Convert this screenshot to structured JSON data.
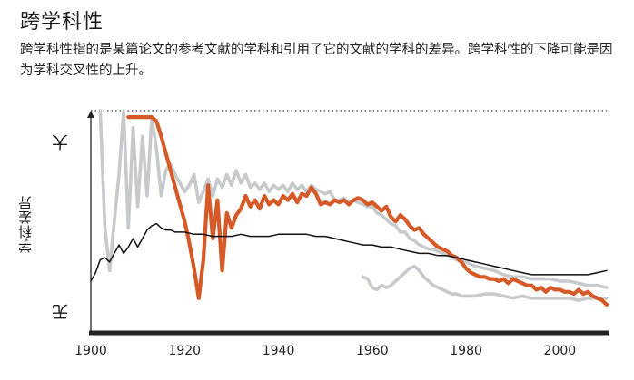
{
  "header": {
    "title": "跨学科性",
    "subtitle": "跨学科性指的是某篇论文的参考文献的学科和引用了它的文献的学科的差异。跨学科性的下降可能是因为学科交叉性的上升。"
  },
  "colors": {
    "highlight": "#d65a28",
    "gray": "#c6cacd",
    "average": "#111111",
    "axis": "#222222"
  },
  "chart_data": {
    "type": "line",
    "xlim": [
      1900,
      2010
    ],
    "ylim": [
      0,
      100
    ],
    "ylabel": "学科差异",
    "y_high_label": "大",
    "y_low_label": "无",
    "x_ticks": [
      1900,
      1920,
      1940,
      1960,
      1980,
      2000
    ],
    "series": [
      {
        "role": "gray",
        "points": [
          [
            1902,
            100
          ],
          [
            1903,
            45
          ],
          [
            1904,
            25
          ],
          [
            1905,
            48
          ],
          [
            1906,
            70
          ],
          [
            1907,
            100
          ],
          [
            1908,
            45
          ],
          [
            1909,
            92
          ],
          [
            1910,
            55
          ],
          [
            1911,
            88
          ],
          [
            1912,
            60
          ],
          [
            1913,
            97
          ],
          [
            1914,
            82
          ],
          [
            1915,
            60
          ],
          [
            1916,
            72
          ],
          [
            1917,
            75
          ],
          [
            1918,
            70
          ],
          [
            1919,
            66
          ],
          [
            1920,
            62
          ],
          [
            1921,
            65
          ],
          [
            1922,
            70
          ],
          [
            1923,
            57
          ],
          [
            1924,
            62
          ],
          [
            1925,
            68
          ],
          [
            1926,
            60
          ],
          [
            1927,
            68
          ],
          [
            1928,
            64
          ],
          [
            1929,
            70
          ],
          [
            1930,
            65
          ],
          [
            1931,
            72
          ],
          [
            1932,
            66
          ],
          [
            1933,
            70
          ],
          [
            1934,
            64
          ],
          [
            1935,
            66
          ],
          [
            1936,
            63
          ],
          [
            1937,
            66
          ],
          [
            1938,
            62
          ],
          [
            1939,
            65
          ],
          [
            1940,
            63
          ],
          [
            1941,
            65
          ],
          [
            1942,
            62
          ],
          [
            1943,
            66
          ],
          [
            1944,
            63
          ],
          [
            1945,
            65
          ],
          [
            1946,
            62
          ],
          [
            1947,
            65
          ],
          [
            1948,
            63
          ],
          [
            1949,
            62
          ],
          [
            1950,
            61
          ],
          [
            1951,
            62
          ],
          [
            1952,
            58
          ],
          [
            1953,
            58
          ],
          [
            1954,
            59
          ],
          [
            1955,
            57
          ],
          [
            1956,
            58
          ],
          [
            1957,
            57
          ],
          [
            1958,
            56
          ],
          [
            1959,
            55
          ],
          [
            1960,
            55
          ],
          [
            1961,
            52
          ],
          [
            1962,
            51
          ],
          [
            1963,
            49
          ],
          [
            1964,
            47
          ],
          [
            1965,
            46
          ],
          [
            1966,
            43
          ],
          [
            1967,
            43
          ],
          [
            1968,
            40
          ],
          [
            1969,
            39
          ],
          [
            1970,
            37
          ],
          [
            1971,
            36
          ],
          [
            1972,
            35
          ],
          [
            1973,
            35
          ],
          [
            1974,
            34
          ],
          [
            1975,
            33
          ],
          [
            1976,
            32
          ],
          [
            1977,
            31
          ],
          [
            1978,
            30
          ],
          [
            1979,
            29
          ],
          [
            1980,
            29
          ],
          [
            1982,
            27
          ],
          [
            1984,
            26
          ],
          [
            1986,
            25
          ],
          [
            1988,
            23
          ],
          [
            1990,
            22
          ],
          [
            1992,
            22
          ],
          [
            1994,
            21
          ],
          [
            1996,
            21
          ],
          [
            1998,
            21
          ],
          [
            2000,
            20
          ],
          [
            2002,
            20
          ],
          [
            2004,
            19
          ],
          [
            2006,
            18
          ],
          [
            2008,
            18
          ],
          [
            2010,
            17
          ]
        ]
      },
      {
        "role": "gray",
        "points": [
          [
            1958,
            22
          ],
          [
            1959,
            21
          ],
          [
            1960,
            17
          ],
          [
            1961,
            16
          ],
          [
            1962,
            18
          ],
          [
            1963,
            17
          ],
          [
            1964,
            18
          ],
          [
            1965,
            20
          ],
          [
            1966,
            22
          ],
          [
            1967,
            24
          ],
          [
            1968,
            26
          ],
          [
            1969,
            27
          ],
          [
            1970,
            25
          ],
          [
            1971,
            22
          ],
          [
            1972,
            20
          ],
          [
            1973,
            18
          ],
          [
            1974,
            17
          ],
          [
            1975,
            16
          ],
          [
            1976,
            15
          ],
          [
            1977,
            14
          ],
          [
            1978,
            14
          ],
          [
            1979,
            13
          ],
          [
            1980,
            13
          ],
          [
            1982,
            13
          ],
          [
            1984,
            14
          ],
          [
            1986,
            14
          ],
          [
            1988,
            13
          ],
          [
            1990,
            12
          ],
          [
            1992,
            13
          ],
          [
            1994,
            12
          ],
          [
            1996,
            12
          ],
          [
            1998,
            12
          ],
          [
            2000,
            12
          ],
          [
            2002,
            12
          ],
          [
            2004,
            11
          ],
          [
            2006,
            12
          ],
          [
            2008,
            12
          ],
          [
            2010,
            12
          ]
        ]
      },
      {
        "role": "highlight",
        "points": [
          [
            1908,
            97
          ],
          [
            1909,
            97
          ],
          [
            1910,
            97
          ],
          [
            1911,
            97
          ],
          [
            1912,
            97
          ],
          [
            1913,
            97
          ],
          [
            1914,
            95
          ],
          [
            1915,
            88
          ],
          [
            1916,
            80
          ],
          [
            1917,
            72
          ],
          [
            1918,
            64
          ],
          [
            1919,
            56
          ],
          [
            1920,
            48
          ],
          [
            1921,
            38
          ],
          [
            1922,
            26
          ],
          [
            1923,
            12
          ],
          [
            1924,
            30
          ],
          [
            1925,
            65
          ],
          [
            1926,
            40
          ],
          [
            1927,
            58
          ],
          [
            1928,
            25
          ],
          [
            1929,
            52
          ],
          [
            1930,
            45
          ],
          [
            1931,
            51
          ],
          [
            1932,
            54
          ],
          [
            1933,
            60
          ],
          [
            1934,
            55
          ],
          [
            1935,
            58
          ],
          [
            1936,
            54
          ],
          [
            1937,
            60
          ],
          [
            1938,
            56
          ],
          [
            1939,
            58
          ],
          [
            1940,
            56
          ],
          [
            1941,
            60
          ],
          [
            1942,
            58
          ],
          [
            1943,
            61
          ],
          [
            1944,
            57
          ],
          [
            1945,
            61
          ],
          [
            1946,
            60
          ],
          [
            1947,
            64
          ],
          [
            1948,
            61
          ],
          [
            1949,
            56
          ],
          [
            1950,
            57
          ],
          [
            1951,
            56
          ],
          [
            1952,
            58
          ],
          [
            1953,
            57
          ],
          [
            1954,
            58
          ],
          [
            1955,
            56
          ],
          [
            1956,
            58
          ],
          [
            1957,
            59
          ],
          [
            1958,
            58
          ],
          [
            1959,
            56
          ],
          [
            1960,
            57
          ],
          [
            1961,
            55
          ],
          [
            1962,
            53
          ],
          [
            1963,
            55
          ],
          [
            1964,
            50
          ],
          [
            1965,
            48
          ],
          [
            1966,
            51
          ],
          [
            1967,
            49
          ],
          [
            1968,
            46
          ],
          [
            1969,
            44
          ],
          [
            1970,
            45
          ],
          [
            1971,
            42
          ],
          [
            1972,
            40
          ],
          [
            1973,
            38
          ],
          [
            1974,
            36
          ],
          [
            1975,
            35
          ],
          [
            1976,
            34
          ],
          [
            1977,
            32
          ],
          [
            1978,
            31
          ],
          [
            1979,
            29
          ],
          [
            1980,
            26
          ],
          [
            1981,
            24
          ],
          [
            1982,
            23
          ],
          [
            1983,
            22
          ],
          [
            1984,
            22
          ],
          [
            1985,
            21
          ],
          [
            1986,
            21
          ],
          [
            1987,
            20
          ],
          [
            1988,
            21
          ],
          [
            1989,
            19
          ],
          [
            1990,
            21
          ],
          [
            1991,
            20
          ],
          [
            1992,
            19
          ],
          [
            1993,
            18
          ],
          [
            1994,
            18
          ],
          [
            1995,
            16
          ],
          [
            1996,
            17
          ],
          [
            1997,
            15
          ],
          [
            1998,
            17
          ],
          [
            1999,
            16
          ],
          [
            2000,
            16
          ],
          [
            2001,
            15
          ],
          [
            2002,
            15
          ],
          [
            2003,
            14
          ],
          [
            2004,
            16
          ],
          [
            2005,
            14
          ],
          [
            2006,
            15
          ],
          [
            2007,
            13
          ],
          [
            2008,
            12
          ],
          [
            2009,
            11
          ],
          [
            2010,
            9
          ]
        ]
      },
      {
        "role": "average",
        "points": [
          [
            1900,
            20
          ],
          [
            1901,
            24
          ],
          [
            1902,
            30
          ],
          [
            1903,
            31
          ],
          [
            1904,
            29
          ],
          [
            1905,
            33
          ],
          [
            1906,
            37
          ],
          [
            1907,
            33
          ],
          [
            1908,
            36
          ],
          [
            1909,
            40
          ],
          [
            1910,
            36
          ],
          [
            1911,
            40
          ],
          [
            1912,
            44
          ],
          [
            1913,
            46
          ],
          [
            1914,
            47
          ],
          [
            1915,
            45
          ],
          [
            1916,
            44
          ],
          [
            1917,
            44
          ],
          [
            1918,
            43
          ],
          [
            1919,
            43
          ],
          [
            1920,
            43
          ],
          [
            1922,
            42
          ],
          [
            1924,
            42
          ],
          [
            1926,
            41
          ],
          [
            1928,
            41
          ],
          [
            1930,
            41
          ],
          [
            1932,
            42
          ],
          [
            1934,
            41
          ],
          [
            1936,
            41
          ],
          [
            1938,
            41
          ],
          [
            1940,
            42
          ],
          [
            1942,
            42
          ],
          [
            1944,
            42
          ],
          [
            1946,
            42
          ],
          [
            1948,
            41
          ],
          [
            1950,
            41
          ],
          [
            1952,
            40
          ],
          [
            1954,
            39
          ],
          [
            1956,
            38
          ],
          [
            1958,
            37
          ],
          [
            1960,
            37
          ],
          [
            1962,
            36
          ],
          [
            1964,
            36
          ],
          [
            1966,
            35
          ],
          [
            1968,
            34
          ],
          [
            1970,
            33
          ],
          [
            1972,
            33
          ],
          [
            1974,
            32
          ],
          [
            1976,
            32
          ],
          [
            1978,
            31
          ],
          [
            1980,
            30
          ],
          [
            1982,
            29
          ],
          [
            1984,
            28
          ],
          [
            1986,
            27
          ],
          [
            1988,
            26
          ],
          [
            1990,
            25
          ],
          [
            1992,
            24
          ],
          [
            1994,
            23
          ],
          [
            1996,
            23
          ],
          [
            1998,
            23
          ],
          [
            2000,
            23
          ],
          [
            2002,
            23
          ],
          [
            2004,
            23
          ],
          [
            2006,
            23
          ],
          [
            2008,
            24
          ],
          [
            2010,
            25
          ]
        ]
      }
    ]
  }
}
